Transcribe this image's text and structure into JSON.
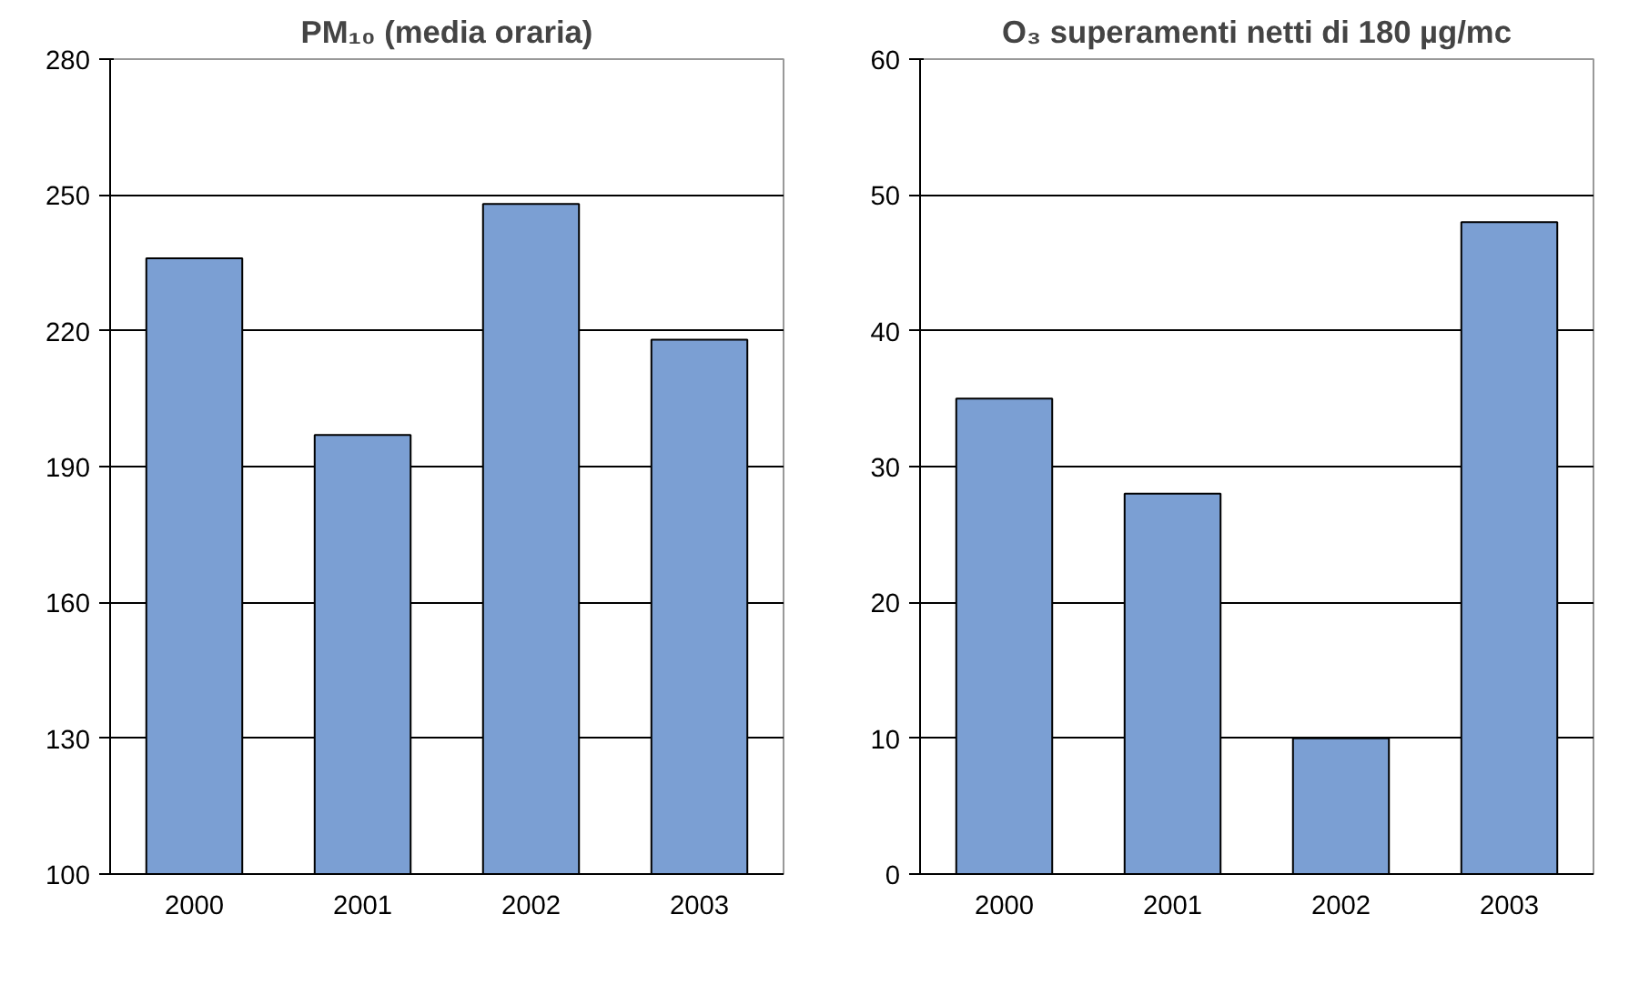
{
  "chart_data": [
    {
      "type": "bar",
      "title": "PM₁₀ (media oraria)",
      "categories": [
        "2000",
        "2001",
        "2002",
        "2003"
      ],
      "values": [
        236,
        197,
        248,
        218
      ],
      "color": "#7b9fd3",
      "ylim": [
        100,
        280
      ],
      "yticks": [
        100,
        130,
        160,
        190,
        220,
        250,
        280
      ],
      "grid": "y"
    },
    {
      "type": "bar",
      "title": "O₃ superamenti netti di 180 µg/mc",
      "categories": [
        "2000",
        "2001",
        "2002",
        "2003"
      ],
      "values": [
        35,
        28,
        10,
        48
      ],
      "color": "#7b9fd3",
      "ylim": [
        0,
        60
      ],
      "yticks": [
        0,
        10,
        20,
        30,
        40,
        50,
        60
      ],
      "grid": "y"
    }
  ]
}
